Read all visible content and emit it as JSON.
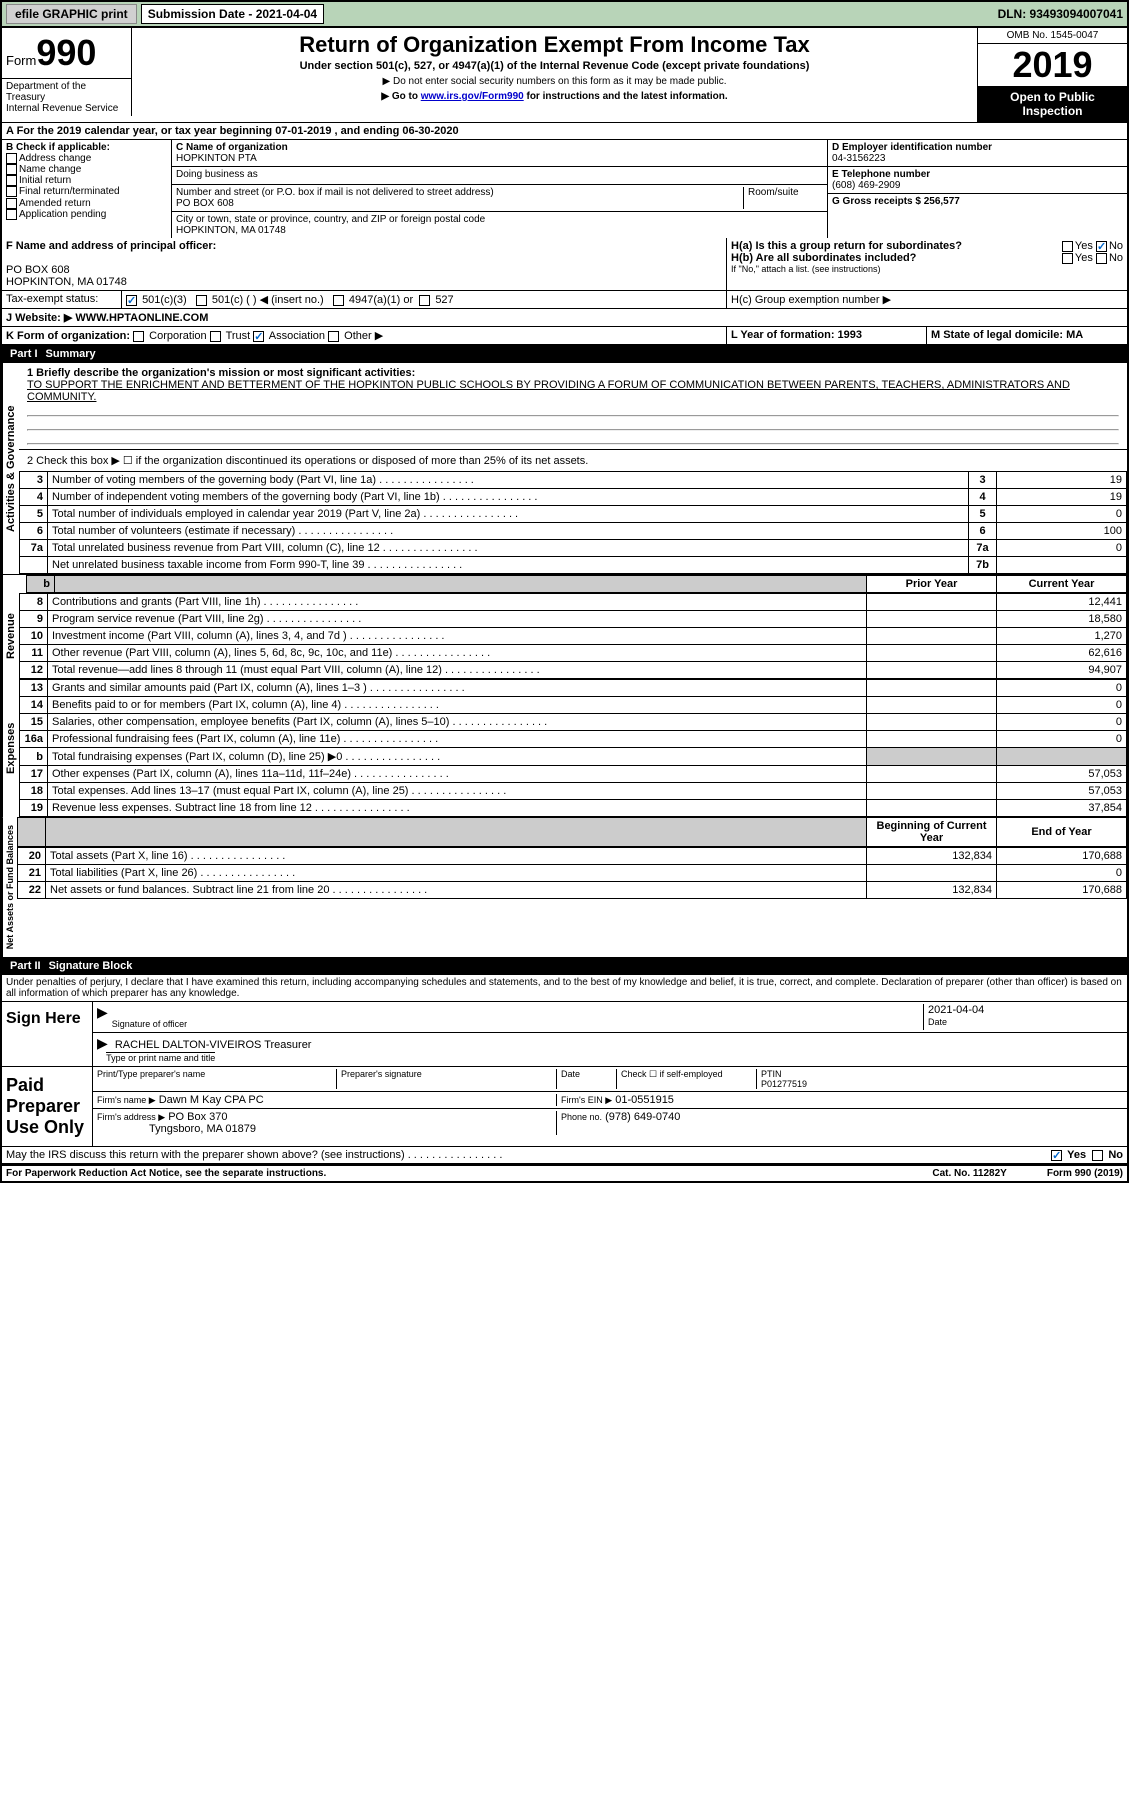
{
  "topbar": {
    "efile": "efile GRAPHIC print",
    "submission_label": "Submission Date - 2021-04-04",
    "dln_label": "DLN: 93493094007041"
  },
  "header": {
    "form_word": "Form",
    "form_num": "990",
    "dept": "Department of the Treasury\nInternal Revenue Service",
    "title": "Return of Organization Exempt From Income Tax",
    "subtitle": "Under section 501(c), 527, or 4947(a)(1) of the Internal Revenue Code (except private foundations)",
    "note1": "▶ Do not enter social security numbers on this form as it may be made public.",
    "note2_pre": "▶ Go to ",
    "note2_link": "www.irs.gov/Form990",
    "note2_post": " for instructions and the latest information.",
    "omb": "OMB No. 1545-0047",
    "year": "2019",
    "badge": "Open to Public Inspection"
  },
  "period": {
    "line_a": "A For the 2019 calendar year, or tax year beginning 07-01-2019    , and ending 06-30-2020"
  },
  "block_b": {
    "label": "B Check if applicable:",
    "opts": [
      "Address change",
      "Name change",
      "Initial return",
      "Final return/terminated",
      "Amended return",
      "Application pending"
    ]
  },
  "block_c": {
    "name_label": "C Name of organization",
    "name": "HOPKINTON PTA",
    "dba_label": "Doing business as",
    "addr_label": "Number and street (or P.O. box if mail is not delivered to street address)",
    "room_label": "Room/suite",
    "addr": "PO BOX 608",
    "city_label": "City or town, state or province, country, and ZIP or foreign postal code",
    "city": "HOPKINTON, MA  01748"
  },
  "block_d": {
    "label": "D Employer identification number",
    "val": "04-3156223"
  },
  "block_e": {
    "label": "E Telephone number",
    "val": "(608) 469-2909"
  },
  "block_g": {
    "label": "G Gross receipts $ 256,577"
  },
  "block_f": {
    "label": "F  Name and address of principal officer:",
    "addr1": "PO BOX 608",
    "addr2": "HOPKINTON, MA  01748"
  },
  "block_h": {
    "ha": "H(a)  Is this a group return for subordinates?",
    "hb": "H(b)  Are all subordinates included?",
    "hb_note": "If \"No,\" attach a list. (see instructions)",
    "hc": "H(c)  Group exemption number ▶"
  },
  "tax_status": {
    "label": "Tax-exempt status:",
    "o1": "501(c)(3)",
    "o2": "501(c) (   ) ◀ (insert no.)",
    "o3": "4947(a)(1) or",
    "o4": "527"
  },
  "block_j": {
    "label": "J    Website: ▶",
    "val": "WWW.HPTAONLINE.COM"
  },
  "block_k": {
    "label": "K Form of organization:",
    "o1": "Corporation",
    "o2": "Trust",
    "o3": "Association",
    "o4": "Other ▶"
  },
  "block_l": {
    "label": "L Year of formation: 1993"
  },
  "block_m": {
    "label": "M State of legal domicile: MA"
  },
  "part1": {
    "label": "Part I",
    "title": "Summary"
  },
  "summary": {
    "q1_label": "1  Briefly describe the organization's mission or most significant activities:",
    "q1_text": "TO SUPPORT THE ENRICHMENT AND BETTERMENT OF THE HOPKINTON PUBLIC SCHOOLS BY PROVIDING A FORUM OF COMMUNICATION BETWEEN PARENTS, TEACHERS, ADMINISTRATORS AND COMMUNITY.",
    "q2": "2    Check this box ▶ ☐  if the organization discontinued its operations or disposed of more than 25% of its net assets.",
    "rows_gov": [
      {
        "n": "3",
        "t": "Number of voting members of the governing body (Part VI, line 1a)",
        "k": "3",
        "v": "19"
      },
      {
        "n": "4",
        "t": "Number of independent voting members of the governing body (Part VI, line 1b)",
        "k": "4",
        "v": "19"
      },
      {
        "n": "5",
        "t": "Total number of individuals employed in calendar year 2019 (Part V, line 2a)",
        "k": "5",
        "v": "0"
      },
      {
        "n": "6",
        "t": "Total number of volunteers (estimate if necessary)",
        "k": "6",
        "v": "100"
      },
      {
        "n": "7a",
        "t": "Total unrelated business revenue from Part VIII, column (C), line 12",
        "k": "7a",
        "v": "0"
      },
      {
        "n": "",
        "t": "Net unrelated business taxable income from Form 990-T, line 39",
        "k": "7b",
        "v": ""
      }
    ],
    "hdr_prior": "Prior Year",
    "hdr_curr": "Current Year",
    "rows_rev": [
      {
        "n": "8",
        "t": "Contributions and grants (Part VIII, line 1h)",
        "p": "",
        "c": "12,441"
      },
      {
        "n": "9",
        "t": "Program service revenue (Part VIII, line 2g)",
        "p": "",
        "c": "18,580"
      },
      {
        "n": "10",
        "t": "Investment income (Part VIII, column (A), lines 3, 4, and 7d )",
        "p": "",
        "c": "1,270"
      },
      {
        "n": "11",
        "t": "Other revenue (Part VIII, column (A), lines 5, 6d, 8c, 9c, 10c, and 11e)",
        "p": "",
        "c": "62,616"
      },
      {
        "n": "12",
        "t": "Total revenue—add lines 8 through 11 (must equal Part VIII, column (A), line 12)",
        "p": "",
        "c": "94,907"
      }
    ],
    "rows_exp": [
      {
        "n": "13",
        "t": "Grants and similar amounts paid (Part IX, column (A), lines 1–3 )",
        "p": "",
        "c": "0"
      },
      {
        "n": "14",
        "t": "Benefits paid to or for members (Part IX, column (A), line 4)",
        "p": "",
        "c": "0"
      },
      {
        "n": "15",
        "t": "Salaries, other compensation, employee benefits (Part IX, column (A), lines 5–10)",
        "p": "",
        "c": "0"
      },
      {
        "n": "16a",
        "t": "Professional fundraising fees (Part IX, column (A), line 11e)",
        "p": "",
        "c": "0"
      },
      {
        "n": "b",
        "t": "Total fundraising expenses (Part IX, column (D), line 25) ▶0",
        "p": "shaded",
        "c": "shaded"
      },
      {
        "n": "17",
        "t": "Other expenses (Part IX, column (A), lines 11a–11d, 11f–24e)",
        "p": "",
        "c": "57,053"
      },
      {
        "n": "18",
        "t": "Total expenses. Add lines 13–17 (must equal Part IX, column (A), line 25)",
        "p": "",
        "c": "57,053"
      },
      {
        "n": "19",
        "t": "Revenue less expenses. Subtract line 18 from line 12",
        "p": "",
        "c": "37,854"
      }
    ],
    "hdr_beg": "Beginning of Current Year",
    "hdr_end": "End of Year",
    "rows_net": [
      {
        "n": "20",
        "t": "Total assets (Part X, line 16)",
        "p": "132,834",
        "c": "170,688"
      },
      {
        "n": "21",
        "t": "Total liabilities (Part X, line 26)",
        "p": "",
        "c": "0"
      },
      {
        "n": "22",
        "t": "Net assets or fund balances. Subtract line 21 from line 20",
        "p": "132,834",
        "c": "170,688"
      }
    ]
  },
  "part2": {
    "label": "Part II",
    "title": "Signature Block"
  },
  "sig": {
    "perjury": "Under penalties of perjury, I declare that I have examined this return, including accompanying schedules and statements, and to the best of my knowledge and belief, it is true, correct, and complete. Declaration of preparer (other than officer) is based on all information of which preparer has any knowledge.",
    "sign_here": "Sign Here",
    "sig_officer": "Signature of officer",
    "date_label": "Date",
    "date_val": "2021-04-04",
    "officer_name": "RACHEL DALTON-VIVEIROS  Treasurer",
    "type_label": "Type or print name and title",
    "paid_prep": "Paid Preparer Use Only",
    "prep_name_label": "Print/Type preparer's name",
    "prep_sig_label": "Preparer's signature",
    "check_self": "Check ☐ if self-employed",
    "ptin_label": "PTIN",
    "ptin_val": "P01277519",
    "firm_name_label": "Firm's name    ▶",
    "firm_name": "Dawn M Kay CPA PC",
    "firm_ein_label": "Firm's EIN ▶",
    "firm_ein": "01-0551915",
    "firm_addr_label": "Firm's address ▶",
    "firm_addr1": "PO Box 370",
    "firm_addr2": "Tyngsboro, MA  01879",
    "phone_label": "Phone no.",
    "phone_val": "(978) 649-0740",
    "discuss": "May the IRS discuss this return with the preparer shown above? (see instructions)",
    "yes": "Yes",
    "no": "No"
  },
  "footer": {
    "left": "For Paperwork Reduction Act Notice, see the separate instructions.",
    "mid": "Cat. No. 11282Y",
    "right": "Form 990 (2019)"
  },
  "side_labels": {
    "gov": "Activities & Governance",
    "rev": "Revenue",
    "exp": "Expenses",
    "net": "Net Assets or Fund Balances"
  }
}
